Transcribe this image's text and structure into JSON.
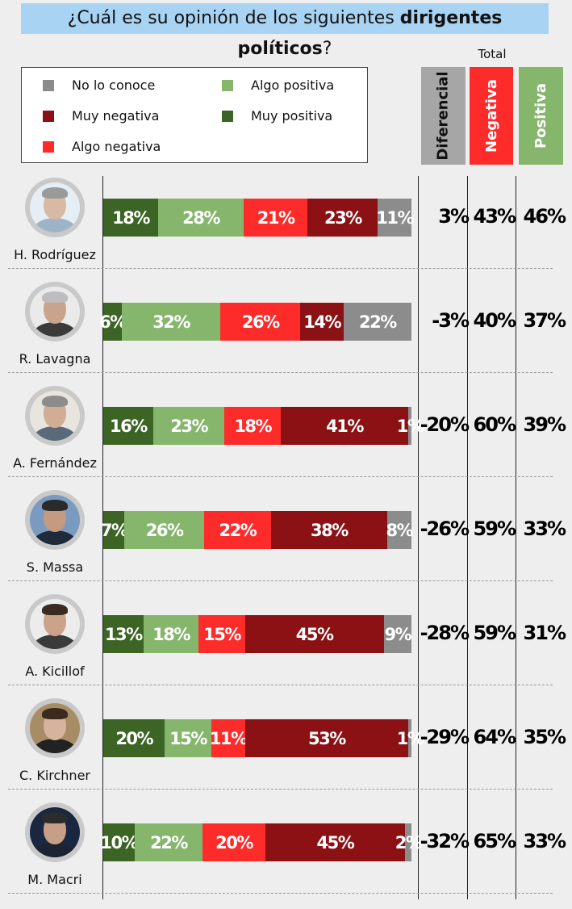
{
  "title": {
    "pre": "¿Cuál es su opinión de los siguientes ",
    "bold": "dirigentes políticos",
    "post": "?"
  },
  "legend": [
    {
      "label": "No lo conoce",
      "color": "#8c8c8c"
    },
    {
      "label": "Muy negativa",
      "color": "#8b1115"
    },
    {
      "label": "Algo negativa",
      "color": "#fe2b2b"
    },
    {
      "label": "Algo positiva",
      "color": "#85b66c"
    },
    {
      "label": "Muy positiva",
      "color": "#3c6424"
    }
  ],
  "columns": {
    "total_label": "Total",
    "diferencial": "Diferencial",
    "negativa": "Negativa",
    "positiva": "Positiva",
    "colors": {
      "diferencial": "#a6a6a6",
      "negativa": "#fe2b2b",
      "positiva": "#85b66c"
    }
  },
  "chart_data": {
    "type": "bar",
    "orientation": "horizontal",
    "stacked": true,
    "title": "¿Cuál es su opinión de los siguientes dirigentes políticos?",
    "categories": [
      "H. Rodríguez",
      "R. Lavagna",
      "A. Fernández",
      "S. Massa",
      "A. Kicillof",
      "C. Kirchner",
      "M. Macri"
    ],
    "series": [
      {
        "name": "Muy positiva",
        "color": "#3c6424",
        "values": [
          18,
          6,
          16,
          7,
          13,
          20,
          10
        ]
      },
      {
        "name": "Algo positiva",
        "color": "#85b66c",
        "values": [
          28,
          32,
          23,
          26,
          18,
          15,
          22
        ]
      },
      {
        "name": "Algo negativa",
        "color": "#fe2b2b",
        "values": [
          21,
          26,
          18,
          22,
          15,
          11,
          20
        ]
      },
      {
        "name": "Muy negativa",
        "color": "#8b1115",
        "values": [
          23,
          14,
          41,
          38,
          45,
          53,
          45
        ]
      },
      {
        "name": "No lo conoce",
        "color": "#8c8c8c",
        "values": [
          11,
          22,
          1,
          8,
          9,
          1,
          2
        ]
      }
    ],
    "diferencial": [
      "3%",
      "-3%",
      "-20%",
      "-26%",
      "-28%",
      "-29%",
      "-32%"
    ],
    "negativa_total": [
      "43%",
      "40%",
      "60%",
      "59%",
      "59%",
      "64%",
      "65%"
    ],
    "positiva_total": [
      "46%",
      "37%",
      "39%",
      "33%",
      "31%",
      "35%",
      "33%"
    ],
    "legend_position": "top-left"
  },
  "avatar_icon": "person-photo-icon"
}
